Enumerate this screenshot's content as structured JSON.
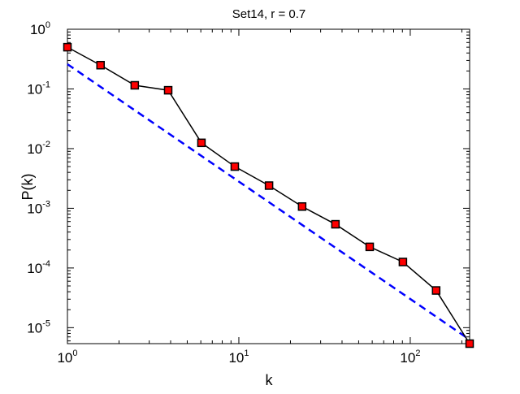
{
  "chart_data": {
    "type": "line",
    "title": "Set14, r = 0.7",
    "xlabel": "k",
    "ylabel": "P(k)",
    "xscale": "log",
    "yscale": "log",
    "xlim": [
      1,
      222
    ],
    "ylim": [
      5.4e-06,
      1
    ],
    "grid": false,
    "x_ticks": [
      {
        "base": "10",
        "exp": "0",
        "value": 1
      },
      {
        "base": "10",
        "exp": "1",
        "value": 10
      },
      {
        "base": "10",
        "exp": "2",
        "value": 100
      }
    ],
    "y_ticks": [
      {
        "base": "10",
        "exp": "0",
        "value": 1
      },
      {
        "base": "10",
        "exp": "-1",
        "value": 0.1
      },
      {
        "base": "10",
        "exp": "-2",
        "value": 0.01
      },
      {
        "base": "10",
        "exp": "-3",
        "value": 0.001
      },
      {
        "base": "10",
        "exp": "-4",
        "value": 0.0001
      },
      {
        "base": "10",
        "exp": "-5",
        "value": 1e-05
      }
    ],
    "series": [
      {
        "style": "solid-black-line-red-square-markers",
        "color": "#000000",
        "marker_color": "#ff0000",
        "x": [
          1,
          1.56,
          2.47,
          3.87,
          6.05,
          9.47,
          15,
          23.4,
          36.6,
          58,
          90.6,
          141.6,
          222
        ],
        "y": [
          0.5,
          0.25,
          0.115,
          0.095,
          0.0125,
          0.005,
          0.0024,
          0.00107,
          0.00054,
          0.000226,
          0.000126,
          4.2e-05,
          5.4e-06
        ]
      },
      {
        "style": "dashed-fit-line",
        "color": "#0000ff",
        "x": [
          1,
          222
        ],
        "y": [
          0.26,
          6.3e-06
        ]
      }
    ]
  }
}
